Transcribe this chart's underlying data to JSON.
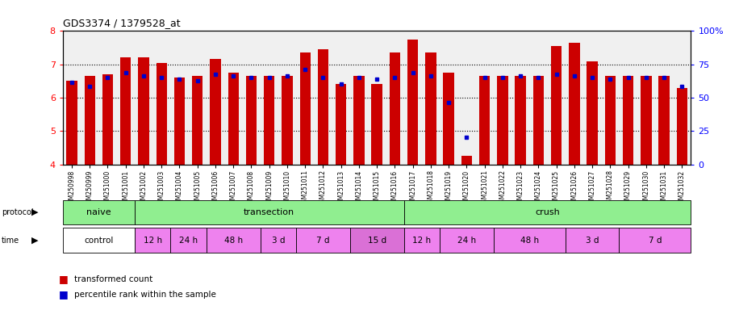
{
  "title": "GDS3374 / 1379528_at",
  "samples": [
    "GSM250998",
    "GSM250999",
    "GSM251000",
    "GSM251001",
    "GSM251002",
    "GSM251003",
    "GSM251004",
    "GSM251005",
    "GSM251006",
    "GSM251007",
    "GSM251008",
    "GSM251009",
    "GSM251010",
    "GSM251011",
    "GSM251012",
    "GSM251013",
    "GSM251014",
    "GSM251015",
    "GSM251016",
    "GSM251017",
    "GSM251018",
    "GSM251019",
    "GSM251020",
    "GSM251021",
    "GSM251022",
    "GSM251023",
    "GSM251024",
    "GSM251025",
    "GSM251026",
    "GSM251027",
    "GSM251028",
    "GSM251029",
    "GSM251030",
    "GSM251031",
    "GSM251032"
  ],
  "red_values": [
    6.5,
    6.65,
    6.7,
    7.2,
    7.2,
    7.05,
    6.6,
    6.65,
    7.15,
    6.75,
    6.65,
    6.65,
    6.65,
    7.35,
    7.45,
    6.4,
    6.65,
    6.4,
    7.35,
    7.75,
    7.35,
    6.75,
    4.25,
    6.65,
    6.65,
    6.65,
    6.65,
    7.55,
    7.65,
    7.1,
    6.65,
    6.65,
    6.65,
    6.65,
    6.3
  ],
  "blue_values": [
    6.45,
    6.35,
    6.6,
    6.75,
    6.65,
    6.6,
    6.55,
    6.5,
    6.7,
    6.65,
    6.6,
    6.6,
    6.65,
    6.85,
    6.6,
    6.4,
    6.6,
    6.55,
    6.6,
    6.75,
    6.65,
    5.85,
    4.8,
    6.6,
    6.6,
    6.65,
    6.6,
    6.7,
    6.65,
    6.6,
    6.55,
    6.6,
    6.6,
    6.6,
    6.35
  ],
  "ylim": [
    4,
    8
  ],
  "yticks_left": [
    4,
    5,
    6,
    7,
    8
  ],
  "yticks_right": [
    0,
    25,
    50,
    75,
    100
  ],
  "bar_color": "#cc0000",
  "dot_color": "#0000cc",
  "protocol_groups": [
    {
      "label": "naive",
      "start": 0,
      "end": 4,
      "color": "#90EE90"
    },
    {
      "label": "transection",
      "start": 4,
      "end": 19,
      "color": "#90EE90"
    },
    {
      "label": "crush",
      "start": 19,
      "end": 35,
      "color": "#90EE90"
    }
  ],
  "time_groups": [
    {
      "label": "control",
      "start": 0,
      "end": 4,
      "color": "#ffffff"
    },
    {
      "label": "12 h",
      "start": 4,
      "end": 6,
      "color": "#ee82ee"
    },
    {
      "label": "24 h",
      "start": 6,
      "end": 8,
      "color": "#ee82ee"
    },
    {
      "label": "48 h",
      "start": 8,
      "end": 11,
      "color": "#ee82ee"
    },
    {
      "label": "3 d",
      "start": 11,
      "end": 13,
      "color": "#ee82ee"
    },
    {
      "label": "7 d",
      "start": 13,
      "end": 16,
      "color": "#ee82ee"
    },
    {
      "label": "15 d",
      "start": 16,
      "end": 19,
      "color": "#da70d6"
    },
    {
      "label": "12 h",
      "start": 19,
      "end": 21,
      "color": "#ee82ee"
    },
    {
      "label": "24 h",
      "start": 21,
      "end": 24,
      "color": "#ee82ee"
    },
    {
      "label": "48 h",
      "start": 24,
      "end": 28,
      "color": "#ee82ee"
    },
    {
      "label": "3 d",
      "start": 28,
      "end": 31,
      "color": "#ee82ee"
    },
    {
      "label": "7 d",
      "start": 31,
      "end": 35,
      "color": "#ee82ee"
    }
  ],
  "legend_items": [
    {
      "color": "#cc0000",
      "label": "transformed count"
    },
    {
      "color": "#0000cc",
      "label": "percentile rank within the sample"
    }
  ]
}
